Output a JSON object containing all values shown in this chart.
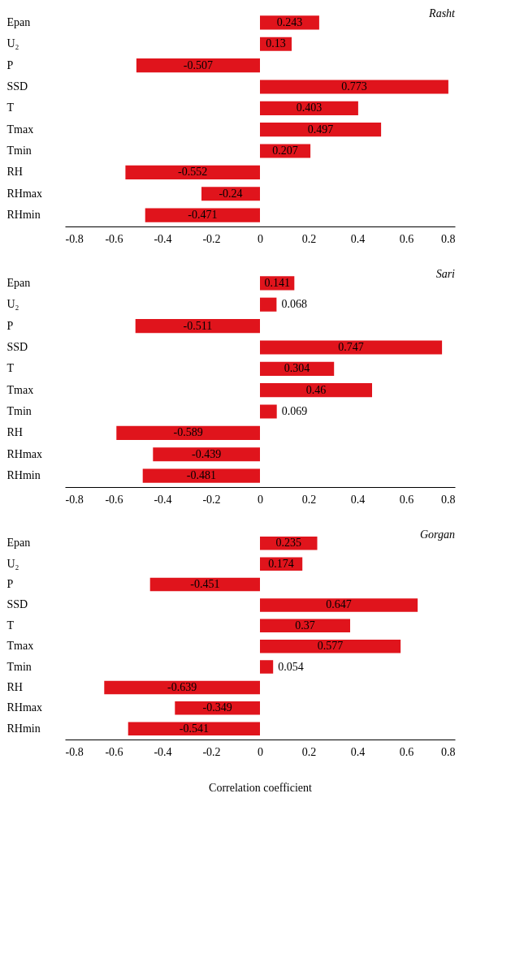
{
  "chart_data": [
    {
      "type": "bar",
      "orientation": "horizontal",
      "title": "Rasht",
      "categories": [
        "Epan",
        "U₂",
        "P",
        "SSD",
        "T",
        "Tmax",
        "Tmin",
        "RH",
        "RHmax",
        "RHmin"
      ],
      "values": [
        0.243,
        0.13,
        -0.507,
        0.773,
        0.403,
        0.497,
        0.207,
        -0.552,
        -0.24,
        -0.471
      ],
      "color": "#e0141c",
      "xlim": [
        -0.8,
        0.8
      ],
      "xticks": [
        -0.8,
        -0.6,
        -0.4,
        -0.2,
        0,
        0.2,
        0.4,
        0.6,
        0.8
      ],
      "data_labels": true
    },
    {
      "type": "bar",
      "orientation": "horizontal",
      "title": "Sari",
      "categories": [
        "Epan",
        "U₂",
        "P",
        "SSD",
        "T",
        "Tmax",
        "Tmin",
        "RH",
        "RHmax",
        "RHmin"
      ],
      "values": [
        0.141,
        0.068,
        -0.511,
        0.747,
        0.304,
        0.46,
        0.069,
        -0.589,
        -0.439,
        -0.481
      ],
      "color": "#e0141c",
      "xlim": [
        -0.8,
        0.8
      ],
      "xticks": [
        -0.8,
        -0.6,
        -0.4,
        -0.2,
        0,
        0.2,
        0.4,
        0.6,
        0.8
      ],
      "data_labels": true
    },
    {
      "type": "bar",
      "orientation": "horizontal",
      "title": "Gorgan",
      "xlabel": "Correlation coefficient",
      "categories": [
        "Epan",
        "U₂",
        "P",
        "SSD",
        "T",
        "Tmax",
        "Tmin",
        "RH",
        "RHmax",
        "RHmin"
      ],
      "values": [
        0.235,
        0.174,
        -0.451,
        0.647,
        0.37,
        0.577,
        0.054,
        -0.639,
        -0.349,
        -0.541
      ],
      "color": "#e0141c",
      "xlim": [
        -0.8,
        0.8
      ],
      "xticks": [
        -0.8,
        -0.6,
        -0.4,
        -0.2,
        0,
        0.2,
        0.4,
        0.6,
        0.8
      ],
      "data_labels": true
    }
  ]
}
